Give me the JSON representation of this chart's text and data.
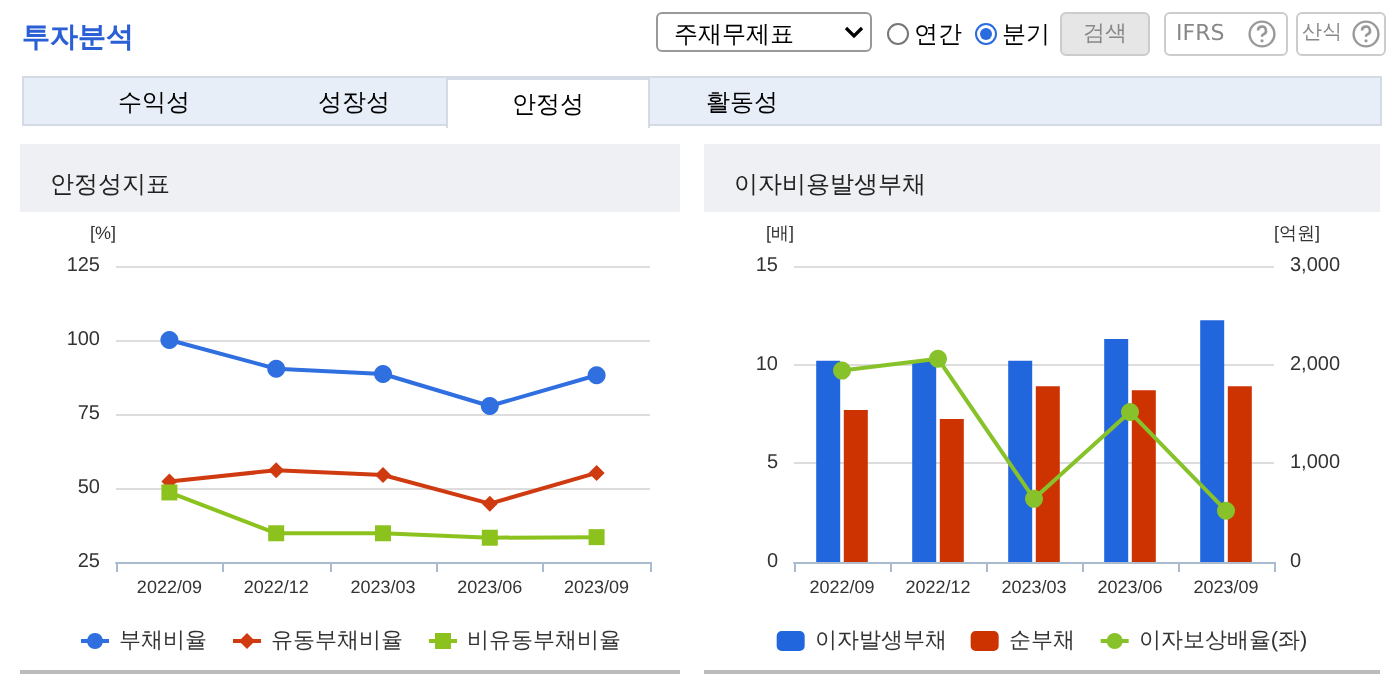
{
  "chart_data": [
    {
      "type": "other",
      "title": "투자분석",
      "annotations": [
        "주재무제표",
        "연간",
        "분기",
        "검색",
        "IFRS",
        "산식",
        "수익성",
        "성장성",
        "안정성",
        "활동성"
      ]
    },
    {
      "type": "line",
      "title": "안정성지표",
      "ylabel": "[%]",
      "categories": [
        "2022/09",
        "2022/12",
        "2023/03",
        "2023/06",
        "2023/09"
      ],
      "ylim": [
        25,
        125
      ],
      "yticks": [
        25,
        50,
        75,
        100,
        125
      ],
      "grid": "y",
      "legend": "bottom",
      "line_style": "solid",
      "series": [
        {
          "name": "부채비율",
          "color": "#2f6fe0",
          "marker": "circle",
          "values": [
            100.0,
            90.3,
            88.5,
            77.7,
            88.1
          ]
        },
        {
          "name": "유동부채비율",
          "color": "#d03a10",
          "marker": "diamond",
          "values": [
            52.2,
            56.0,
            54.4,
            44.7,
            55.1
          ]
        },
        {
          "name": "비유동부채비율",
          "color": "#8cc21e",
          "marker": "square",
          "values": [
            48.5,
            34.7,
            34.7,
            33.2,
            33.4
          ]
        }
      ]
    },
    {
      "type": "bar",
      "title": "이자비용발생부채",
      "ylabel": "[배]",
      "y2label": "[억원]",
      "categories": [
        "2022/09",
        "2022/12",
        "2023/03",
        "2023/06",
        "2023/09"
      ],
      "ylim": [
        0,
        15
      ],
      "yticks": [
        0,
        5,
        10,
        15
      ],
      "y2lim": [
        0,
        3000
      ],
      "y2ticks": [
        0,
        {
          "value": 1000,
          "label": "1,000"
        },
        {
          "value": 2000,
          "label": "2,000"
        },
        {
          "value": 3000,
          "label": "3,000"
        }
      ],
      "grid": "y",
      "legend": "bottom",
      "series": [
        {
          "name": "이자발생부채",
          "color": "#2266dd",
          "axis": "y2",
          "values": [
            2040,
            2040,
            2040,
            2260,
            2450
          ]
        },
        {
          "name": "순부채",
          "color": "#cc3300",
          "axis": "y2",
          "values": [
            1540,
            1450,
            1780,
            1740,
            1780
          ]
        },
        {
          "name": "이자보상배율(좌)",
          "type": "line",
          "color": "#88c22a",
          "marker": "circle",
          "values": [
            9.7,
            10.3,
            3.2,
            7.6,
            2.6
          ]
        }
      ]
    }
  ]
}
